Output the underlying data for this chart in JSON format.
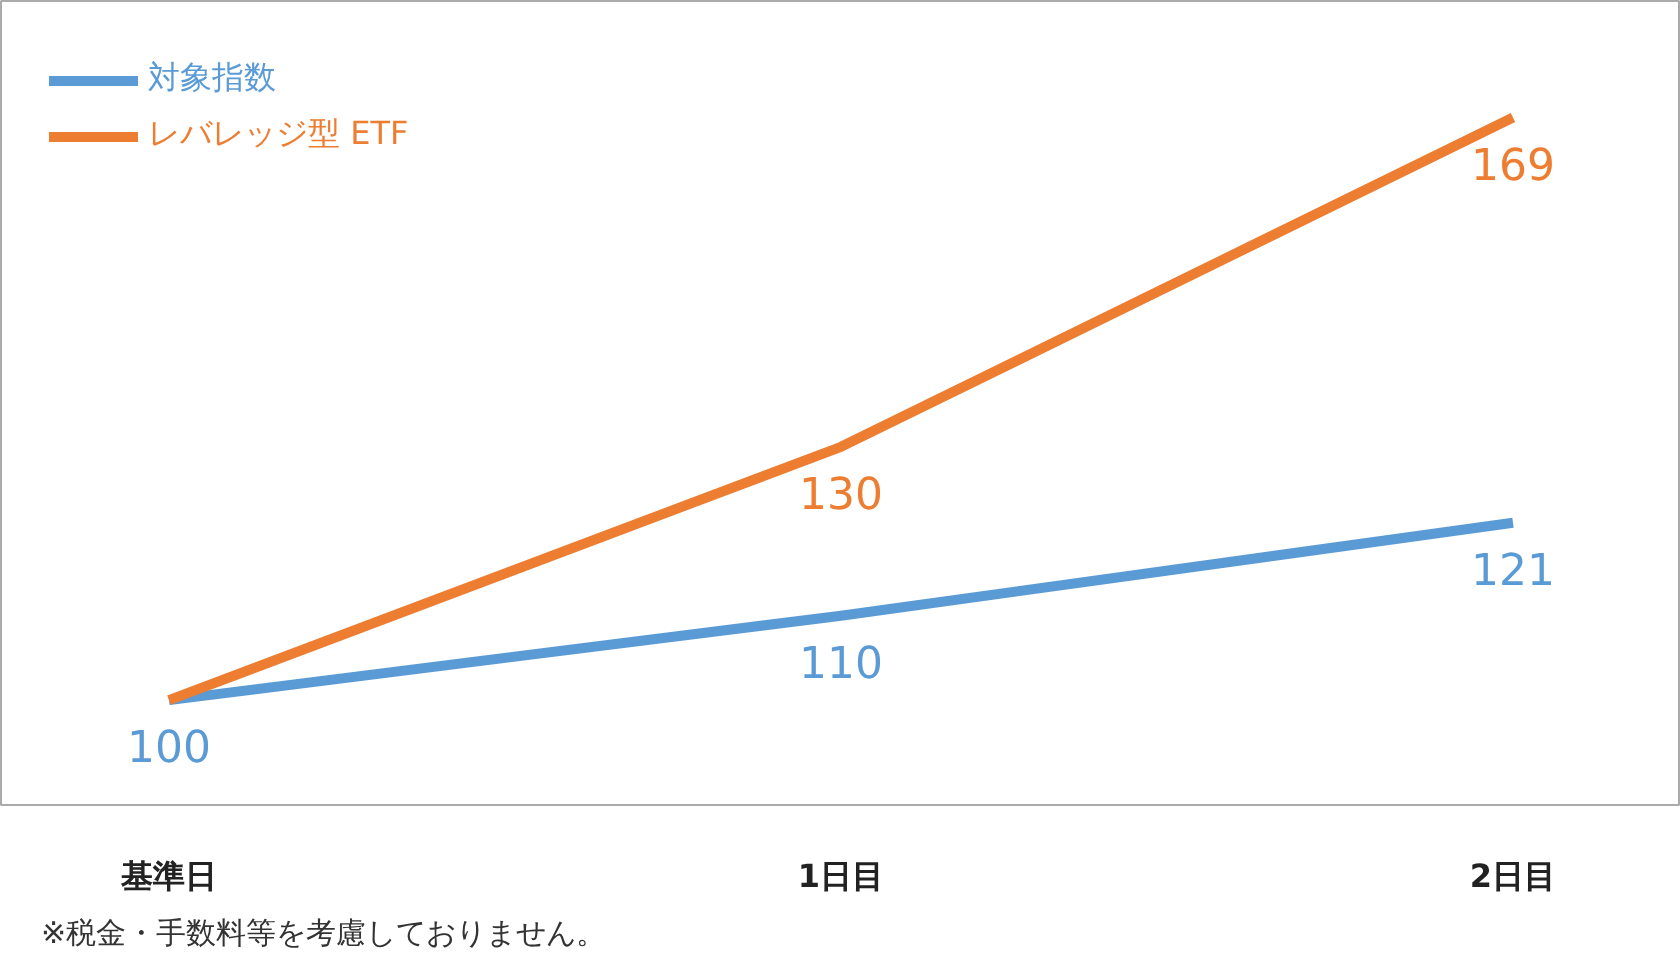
{
  "chart_data": {
    "type": "line",
    "categories": [
      "基準日",
      "1日目",
      "2日目"
    ],
    "series": [
      {
        "name": "対象指数",
        "color": "#5b9bd5",
        "values": [
          100,
          110,
          121
        ],
        "value_labels": [
          "100",
          "110",
          "121"
        ]
      },
      {
        "name": "レバレッジ型 ETF",
        "color": "#ed7d31",
        "values": [
          100,
          130,
          169
        ],
        "value_labels": [
          null,
          "130",
          "169"
        ]
      }
    ],
    "legend": "top left",
    "grid": false,
    "tick_labels": "x",
    "marker": "none",
    "line_style": "solid",
    "annotations": [
      "※税金・手数料等を考慮しておりません。"
    ]
  }
}
